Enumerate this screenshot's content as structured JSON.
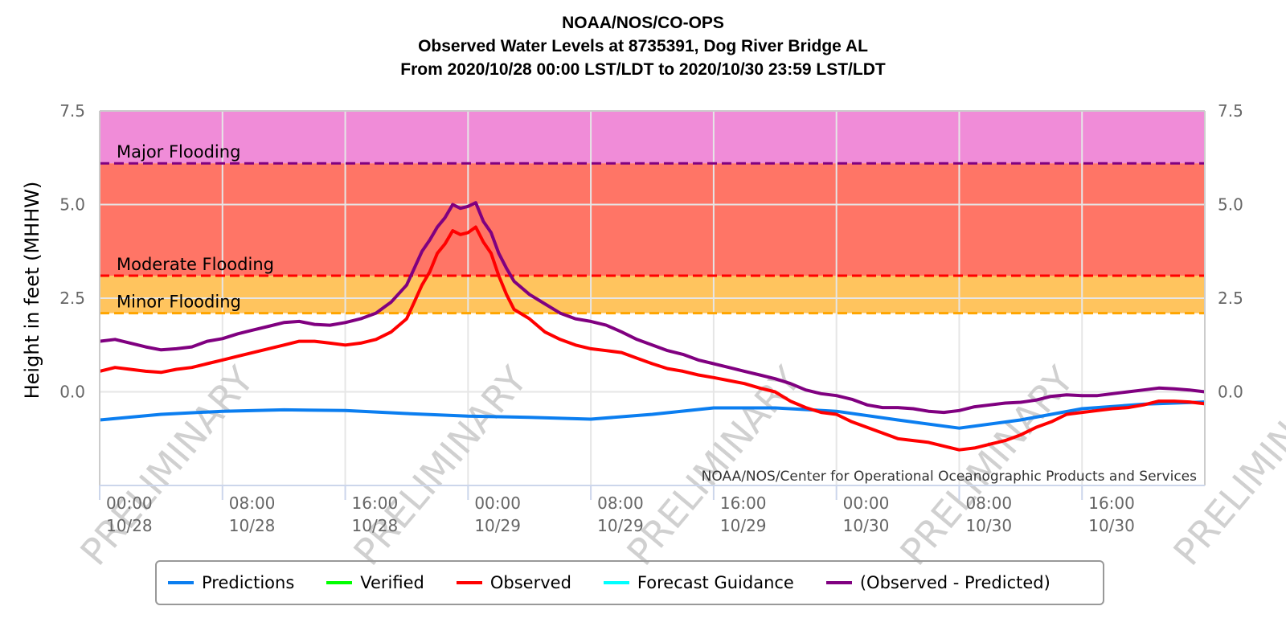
{
  "chart_data": {
    "type": "line",
    "title": "NOAA/NOS/CO-OPS",
    "subtitle_lines": [
      "Observed Water Levels at 8735391, Dog River Bridge AL",
      "From 2020/10/28 00:00 LST/LDT to 2020/10/30 23:59 LST/LDT"
    ],
    "xlabel": "",
    "ylabel": "Height in feet (MHHW)",
    "ylim": [
      -2.5,
      7.5
    ],
    "xlim_hours": [
      0,
      72
    ],
    "y_ticks": [
      "7.5",
      "5.0",
      "2.5",
      "0.0"
    ],
    "y_tick_values": [
      7.5,
      5.0,
      2.5,
      0.0
    ],
    "x_ticks": [
      {
        "hour": 0,
        "time": "00:00",
        "date": "10/28"
      },
      {
        "hour": 8,
        "time": "08:00",
        "date": "10/28"
      },
      {
        "hour": 16,
        "time": "16:00",
        "date": "10/28"
      },
      {
        "hour": 24,
        "time": "00:00",
        "date": "10/29"
      },
      {
        "hour": 32,
        "time": "08:00",
        "date": "10/29"
      },
      {
        "hour": 40,
        "time": "16:00",
        "date": "10/29"
      },
      {
        "hour": 48,
        "time": "00:00",
        "date": "10/30"
      },
      {
        "hour": 56,
        "time": "08:00",
        "date": "10/30"
      },
      {
        "hour": 64,
        "time": "16:00",
        "date": "10/30"
      }
    ],
    "grid": true,
    "flood_thresholds": [
      {
        "label": "Major Flooding",
        "value": 6.1,
        "band_color": "#f08cd8",
        "line_color": "#800080",
        "band_top": 7.5
      },
      {
        "label": "Moderate Flooding",
        "value": 3.1,
        "band_color": "#ff7566",
        "line_color": "#ff0000",
        "band_top": 6.1
      },
      {
        "label": "Minor Flooding",
        "value": 2.1,
        "band_color": "#ffc45e",
        "line_color": "#ffa500",
        "band_top": 3.1
      }
    ],
    "attribution": "NOAA/NOS/Center for Operational Oceanographic Products and Services",
    "watermark": "PRELIMINARY",
    "legend_position": "bottom",
    "series": [
      {
        "name": "Predictions",
        "color": "#0b7ef0",
        "x_hours": [
          0,
          4,
          8,
          12,
          16,
          20,
          24,
          28,
          32,
          36,
          40,
          44,
          48,
          52,
          56,
          60,
          64,
          68,
          72
        ],
        "values": [
          -0.75,
          -0.6,
          -0.52,
          -0.48,
          -0.5,
          -0.58,
          -0.65,
          -0.68,
          -0.73,
          -0.6,
          -0.43,
          -0.43,
          -0.52,
          -0.75,
          -0.97,
          -0.75,
          -0.45,
          -0.33,
          -0.27
        ]
      },
      {
        "name": "Verified",
        "color": "#00ff00",
        "x_hours": [],
        "values": []
      },
      {
        "name": "Observed",
        "color": "#ff0000",
        "x_hours": [
          0,
          1,
          2,
          3,
          4,
          5,
          6,
          7,
          8,
          9,
          10,
          11,
          12,
          13,
          14,
          15,
          16,
          17,
          18,
          19,
          20,
          20.5,
          21,
          21.5,
          22,
          22.5,
          23,
          23.5,
          24,
          24.5,
          25,
          25.5,
          26,
          26.5,
          27,
          28,
          29,
          30,
          31,
          32,
          33,
          34,
          35,
          36,
          37,
          38,
          39,
          40,
          41,
          42,
          43,
          44,
          45,
          46,
          47,
          48,
          49,
          50,
          51,
          52,
          53,
          54,
          55,
          56,
          57,
          58,
          59,
          60,
          61,
          62,
          63,
          64,
          65,
          66,
          67,
          68,
          69,
          70,
          71,
          72
        ],
        "values": [
          0.55,
          0.65,
          0.6,
          0.55,
          0.52,
          0.6,
          0.65,
          0.75,
          0.85,
          0.95,
          1.05,
          1.15,
          1.25,
          1.35,
          1.35,
          1.3,
          1.25,
          1.3,
          1.4,
          1.6,
          1.95,
          2.4,
          2.85,
          3.2,
          3.7,
          3.95,
          4.3,
          4.2,
          4.25,
          4.4,
          4.0,
          3.7,
          3.1,
          2.6,
          2.2,
          1.95,
          1.6,
          1.4,
          1.25,
          1.15,
          1.1,
          1.05,
          0.9,
          0.75,
          0.62,
          0.55,
          0.45,
          0.38,
          0.3,
          0.22,
          0.1,
          0.0,
          -0.25,
          -0.42,
          -0.55,
          -0.6,
          -0.8,
          -0.95,
          -1.1,
          -1.25,
          -1.3,
          -1.35,
          -1.45,
          -1.55,
          -1.5,
          -1.4,
          -1.3,
          -1.15,
          -0.95,
          -0.8,
          -0.6,
          -0.55,
          -0.5,
          -0.45,
          -0.42,
          -0.35,
          -0.25,
          -0.25,
          -0.27,
          -0.32
        ]
      },
      {
        "name": "Forecast Guidance",
        "color": "#00ffff",
        "x_hours": [],
        "values": []
      },
      {
        "name": "(Observed - Predicted)",
        "color": "#800080",
        "x_hours": [
          0,
          1,
          2,
          3,
          4,
          5,
          6,
          7,
          8,
          9,
          10,
          11,
          12,
          13,
          14,
          15,
          16,
          17,
          18,
          19,
          20,
          20.5,
          21,
          21.5,
          22,
          22.5,
          23,
          23.5,
          24,
          24.5,
          25,
          25.5,
          26,
          26.5,
          27,
          28,
          29,
          30,
          31,
          32,
          33,
          34,
          35,
          36,
          37,
          38,
          39,
          40,
          41,
          42,
          43,
          44,
          45,
          46,
          47,
          48,
          49,
          50,
          51,
          52,
          53,
          54,
          55,
          56,
          57,
          58,
          59,
          60,
          61,
          62,
          63,
          64,
          65,
          66,
          67,
          68,
          69,
          70,
          71,
          72
        ],
        "values": [
          1.35,
          1.4,
          1.3,
          1.2,
          1.12,
          1.15,
          1.2,
          1.35,
          1.42,
          1.55,
          1.65,
          1.75,
          1.85,
          1.88,
          1.8,
          1.78,
          1.85,
          1.95,
          2.1,
          2.4,
          2.85,
          3.3,
          3.75,
          4.05,
          4.4,
          4.65,
          5.0,
          4.9,
          4.95,
          5.05,
          4.55,
          4.25,
          3.7,
          3.3,
          2.95,
          2.6,
          2.35,
          2.1,
          1.95,
          1.88,
          1.78,
          1.6,
          1.4,
          1.25,
          1.1,
          1.0,
          0.85,
          0.75,
          0.65,
          0.55,
          0.45,
          0.35,
          0.22,
          0.05,
          -0.05,
          -0.1,
          -0.2,
          -0.35,
          -0.42,
          -0.42,
          -0.45,
          -0.52,
          -0.55,
          -0.5,
          -0.4,
          -0.35,
          -0.3,
          -0.28,
          -0.22,
          -0.12,
          -0.08,
          -0.1,
          -0.1,
          -0.05,
          0.0,
          0.05,
          0.1,
          0.08,
          0.05,
          0.0
        ]
      }
    ]
  },
  "legend": {
    "items": [
      {
        "label": "Predictions",
        "color": "#0b7ef0"
      },
      {
        "label": "Verified",
        "color": "#00ff00"
      },
      {
        "label": "Observed",
        "color": "#ff0000"
      },
      {
        "label": "Forecast Guidance",
        "color": "#00ffff"
      },
      {
        "label": "(Observed - Predicted)",
        "color": "#800080"
      }
    ]
  }
}
